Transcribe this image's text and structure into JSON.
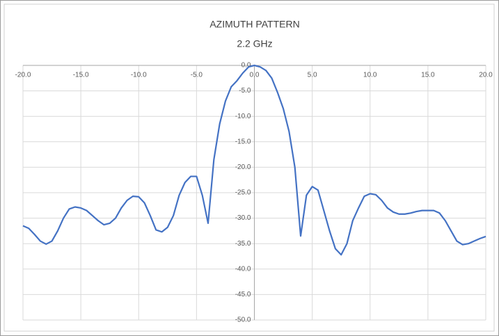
{
  "chart_data": {
    "type": "line",
    "title": "AZIMUTH PATTERN",
    "subtitle": "2.2 GHz",
    "x": [
      -20,
      -19.5,
      -19,
      -18.5,
      -18,
      -17.5,
      -17,
      -16.5,
      -16,
      -15.5,
      -15,
      -14.5,
      -14,
      -13.5,
      -13,
      -12.5,
      -12,
      -11.5,
      -11,
      -10.5,
      -10,
      -9.5,
      -9,
      -8.5,
      -8,
      -7.5,
      -7,
      -6.5,
      -6,
      -5.5,
      -5,
      -4.5,
      -4,
      -3.5,
      -3,
      -2.5,
      -2,
      -1.5,
      -1,
      -0.5,
      0,
      0.5,
      1,
      1.5,
      2,
      2.5,
      3,
      3.5,
      4,
      4.5,
      5,
      5.5,
      6,
      6.5,
      7,
      7.5,
      8,
      8.5,
      9,
      9.5,
      10,
      10.5,
      11,
      11.5,
      12,
      12.5,
      13,
      13.5,
      14,
      14.5,
      15,
      15.5,
      16,
      16.5,
      17,
      17.5,
      18,
      18.5,
      19,
      19.5,
      20
    ],
    "series": [
      {
        "color": "#4472c4",
        "values": [
          -31.5,
          -32,
          -33.2,
          -34.5,
          -35.1,
          -34.5,
          -32.5,
          -30,
          -28.2,
          -27.8,
          -28,
          -28.5,
          -29.5,
          -30.5,
          -31.3,
          -31,
          -30,
          -28,
          -26.5,
          -25.7,
          -25.8,
          -27,
          -29.5,
          -32.3,
          -32.7,
          -31.8,
          -29.5,
          -25.5,
          -23,
          -21.8,
          -21.8,
          -25.5,
          -31,
          -18.5,
          -11.5,
          -7,
          -4.2,
          -3,
          -1.5,
          -0.3,
          0,
          -0.3,
          -1,
          -2.5,
          -5.3,
          -8.5,
          -13,
          -20,
          -33.5,
          -25.5,
          -23.8,
          -24.5,
          -28.5,
          -32.5,
          -36,
          -37.2,
          -35,
          -30.5,
          -28,
          -25.7,
          -25.2,
          -25.4,
          -26.5,
          -28,
          -28.8,
          -29.2,
          -29.2,
          -29,
          -28.7,
          -28.5,
          -28.5,
          -28.5,
          -29,
          -30.5,
          -32.5,
          -34.5,
          -35.2,
          -35,
          -34.5,
          -34,
          -33.6
        ]
      }
    ],
    "xlim": [
      -20,
      20
    ],
    "xticks": [
      {
        "value": -20,
        "label": "-20.0"
      },
      {
        "value": -15,
        "label": "-15.0"
      },
      {
        "value": -10,
        "label": "-10.0"
      },
      {
        "value": -5,
        "label": "-5.0"
      },
      {
        "value": 0,
        "label": "0.0"
      },
      {
        "value": 5,
        "label": "5.0"
      },
      {
        "value": 10,
        "label": "10.0"
      },
      {
        "value": 15,
        "label": "15.0"
      },
      {
        "value": 20,
        "label": "20.0"
      }
    ],
    "ylim": [
      -50,
      0
    ],
    "yticks": [
      {
        "value": 0,
        "label": "0.0"
      },
      {
        "value": -5,
        "label": "-5.0"
      },
      {
        "value": -10,
        "label": "-10.0"
      },
      {
        "value": -15,
        "label": "-15.0"
      },
      {
        "value": -20,
        "label": "-20.0"
      },
      {
        "value": -25,
        "label": "-25.0"
      },
      {
        "value": -30,
        "label": "-30.0"
      },
      {
        "value": -35,
        "label": "-35.0"
      },
      {
        "value": -40,
        "label": "-40.0"
      },
      {
        "value": -45,
        "label": "-45.0"
      },
      {
        "value": -50,
        "label": "-50.0"
      }
    ],
    "grid": true
  }
}
